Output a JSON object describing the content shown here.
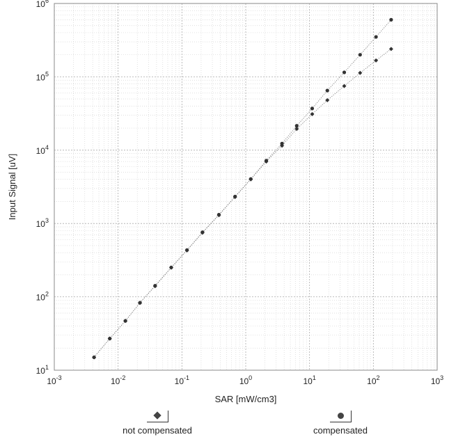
{
  "chart_data": {
    "type": "scatter",
    "x_scale": "log",
    "y_scale": "log",
    "xlim": [
      0.001,
      1000
    ],
    "ylim": [
      10,
      1000000
    ],
    "xlabel": "SAR [mW/cm3]",
    "ylabel": "Input Signal [uV]",
    "grid": true,
    "legend_position": "bottom",
    "x_ticks": [
      {
        "value": 0.001,
        "base": "10",
        "exp": "-3"
      },
      {
        "value": 0.01,
        "base": "10",
        "exp": "-2"
      },
      {
        "value": 0.1,
        "base": "10",
        "exp": "-1"
      },
      {
        "value": 1,
        "base": "10",
        "exp": "0"
      },
      {
        "value": 10,
        "base": "10",
        "exp": "1"
      },
      {
        "value": 100,
        "base": "10",
        "exp": "2"
      },
      {
        "value": 1000,
        "base": "10",
        "exp": "3"
      }
    ],
    "y_ticks": [
      {
        "value": 10,
        "base": "10",
        "exp": "1"
      },
      {
        "value": 100,
        "base": "10",
        "exp": "2"
      },
      {
        "value": 1000,
        "base": "10",
        "exp": "3"
      },
      {
        "value": 10000,
        "base": "10",
        "exp": "4"
      },
      {
        "value": 100000,
        "base": "10",
        "exp": "5"
      },
      {
        "value": 1000000,
        "base": "10",
        "exp": "6"
      }
    ],
    "series": [
      {
        "name": "not compensated",
        "marker": "diamond",
        "color": "#333333",
        "x": [
          0.0042,
          0.0074,
          0.013,
          0.022,
          0.038,
          0.068,
          0.12,
          0.21,
          0.38,
          0.68,
          1.2,
          2.1,
          3.7,
          6.3,
          11,
          19,
          35,
          62,
          110,
          190
        ],
        "y": [
          15,
          27,
          47,
          83,
          140,
          250,
          430,
          750,
          1300,
          2300,
          4000,
          7000,
          11500,
          19500,
          31000,
          48000,
          75000,
          113000,
          167000,
          240000
        ]
      },
      {
        "name": "compensated",
        "marker": "circle",
        "color": "#333333",
        "x": [
          0.0042,
          0.0074,
          0.013,
          0.022,
          0.038,
          0.068,
          0.12,
          0.21,
          0.38,
          0.68,
          1.2,
          2.1,
          3.7,
          6.3,
          11,
          19,
          35,
          62,
          110,
          190
        ],
        "y": [
          15,
          27,
          47,
          83,
          142,
          252,
          435,
          760,
          1320,
          2330,
          4050,
          7200,
          12300,
          21500,
          37000,
          65000,
          115000,
          200000,
          350000,
          600000
        ]
      }
    ]
  }
}
